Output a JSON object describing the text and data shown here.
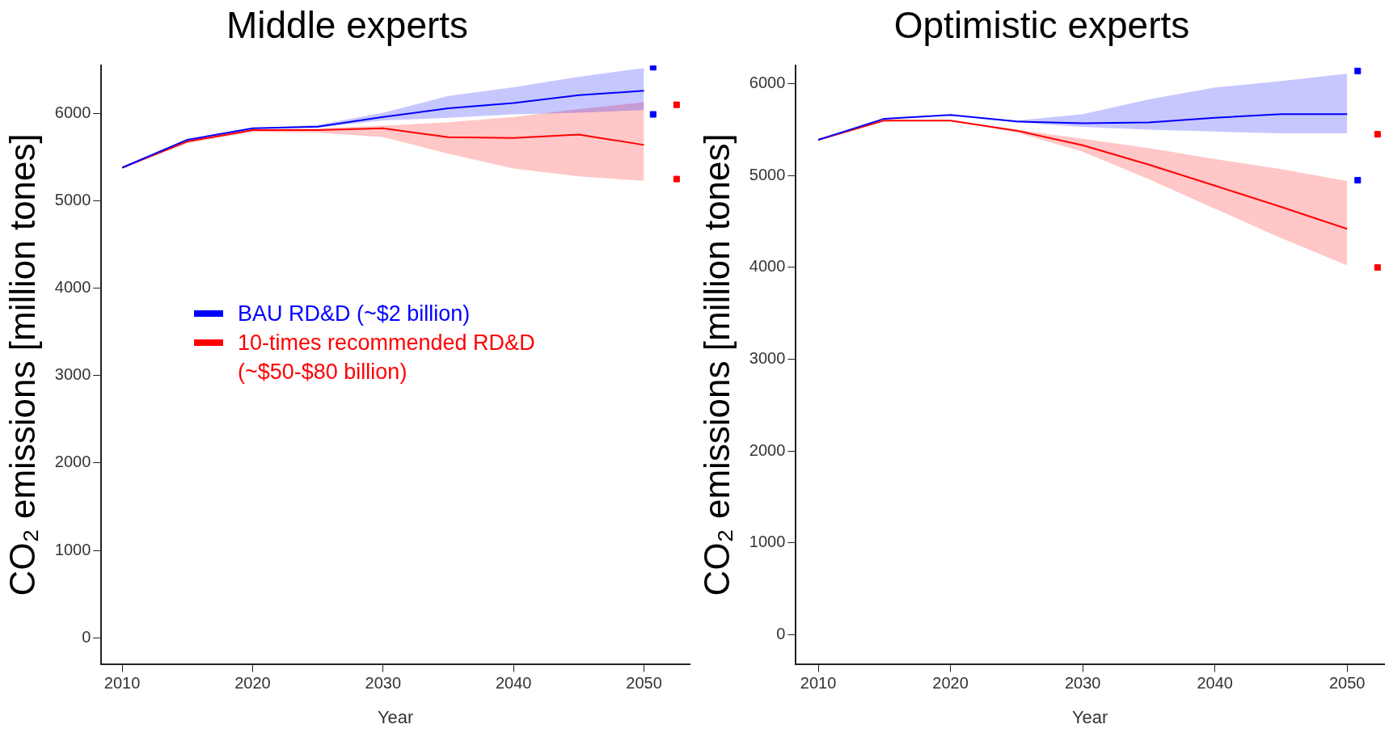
{
  "chart_data": [
    {
      "type": "line",
      "title": "Middle experts",
      "xlabel": "Year",
      "ylabel": "CO₂ emissions [million tones]",
      "xlim": [
        2008.4,
        2053.5
      ],
      "ylim": [
        -300,
        6550
      ],
      "xticks": [
        2010,
        2020,
        2030,
        2040,
        2050
      ],
      "yticks": [
        0,
        1000,
        2000,
        3000,
        4000,
        5000,
        6000
      ],
      "grid": false,
      "legend": "center left",
      "x": [
        2010,
        2015,
        2020,
        2025,
        2030,
        2035,
        2040,
        2045,
        2050
      ],
      "series": [
        {
          "name": "BAU RD&D (~$2 billion)",
          "color": "#0000ff",
          "values": [
            5380,
            5700,
            5830,
            5850,
            5960,
            6060,
            6120,
            6210,
            6260
          ],
          "lower": [
            5380,
            5700,
            5830,
            5840,
            5920,
            5950,
            5990,
            6010,
            6040
          ],
          "upper": [
            5380,
            5700,
            5830,
            5870,
            6010,
            6200,
            6300,
            6420,
            6520
          ]
        },
        {
          "name": "10-times recommended RD&D\n(~$50-$80 billion)",
          "color": "#ff0000",
          "values": [
            5380,
            5680,
            5810,
            5810,
            5830,
            5730,
            5720,
            5760,
            5640
          ],
          "lower": [
            5380,
            5660,
            5790,
            5780,
            5730,
            5540,
            5370,
            5280,
            5230
          ],
          "upper": [
            5380,
            5700,
            5820,
            5830,
            5860,
            5900,
            5960,
            6050,
            6130
          ]
        },
        {
          "type": "scatter",
          "color": "#0000ff",
          "x": [
            2050.7,
            2050.7
          ],
          "values": [
            6530,
            5990
          ]
        },
        {
          "type": "scatter",
          "color": "#ff0000",
          "x": [
            2052.5,
            2052.5
          ],
          "values": [
            6100,
            5250
          ]
        }
      ]
    },
    {
      "type": "line",
      "title": "Optimistic experts",
      "xlabel": "Year",
      "ylabel": "CO₂ emissions [million tones]",
      "xlim": [
        2008.3,
        2052.8
      ],
      "ylim": [
        -320,
        6200
      ],
      "xticks": [
        2010,
        2020,
        2030,
        2040,
        2050
      ],
      "yticks": [
        0,
        1000,
        2000,
        3000,
        4000,
        5000,
        6000
      ],
      "grid": false,
      "x": [
        2010,
        2015,
        2020,
        2025,
        2030,
        2035,
        2040,
        2045,
        2050
      ],
      "series": [
        {
          "color": "#0000ff",
          "values": [
            5390,
            5620,
            5660,
            5590,
            5570,
            5580,
            5630,
            5670,
            5670
          ],
          "lower": [
            5390,
            5620,
            5660,
            5580,
            5530,
            5500,
            5480,
            5460,
            5460
          ],
          "upper": [
            5390,
            5620,
            5660,
            5600,
            5670,
            5830,
            5960,
            6030,
            6110
          ]
        },
        {
          "color": "#ff0000",
          "values": [
            5390,
            5600,
            5600,
            5490,
            5330,
            5120,
            4890,
            4660,
            4420
          ],
          "lower": [
            5390,
            5600,
            5600,
            5470,
            5260,
            4960,
            4640,
            4320,
            4020
          ],
          "upper": [
            5390,
            5600,
            5600,
            5500,
            5400,
            5300,
            5180,
            5070,
            4940
          ]
        },
        {
          "type": "scatter",
          "color": "#0000ff",
          "x": [
            2050.8,
            2050.8
          ],
          "values": [
            6140,
            4950
          ]
        },
        {
          "type": "scatter",
          "color": "#ff0000",
          "x": [
            2052.3,
            2052.3
          ],
          "values": [
            5450,
            4000
          ]
        }
      ]
    }
  ]
}
